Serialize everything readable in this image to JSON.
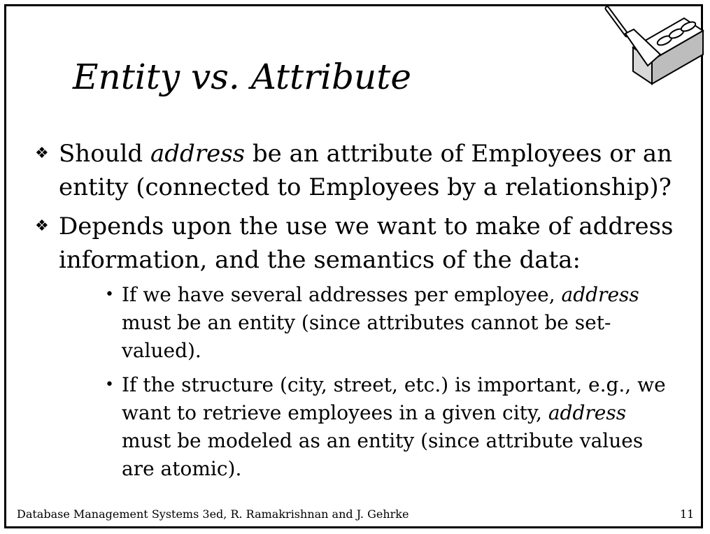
{
  "slide": {
    "title": "Entity vs. Attribute",
    "bullets": [
      {
        "pre": "Should ",
        "em": "address",
        "post_line1": " be an attribute of Employees or an",
        "line2": "entity (connected to Employees by a relationship)?"
      },
      {
        "line1": "Depends upon the use we want to make of address",
        "line2": "information, and the semantics of the data:"
      }
    ],
    "sub_bullets": [
      {
        "line1_pre": "If we have several addresses per employee, ",
        "line1_em": "address",
        "line2": "must be an entity (since attributes cannot be set-",
        "line3": "valued)."
      },
      {
        "line1": "If the structure (city, street, etc.) is important, e.g., we",
        "line2_pre": "want to retrieve employees in a given city, ",
        "line2_em": "address",
        "line3": "must be modeled as an entity (since attribute values",
        "line4": "are atomic)."
      }
    ],
    "footer": "Database Management Systems 3ed,  R. Ramakrishnan and J. Gehrke",
    "page_number": "11"
  },
  "logo": {
    "icon": "brick-trowel-icon"
  }
}
